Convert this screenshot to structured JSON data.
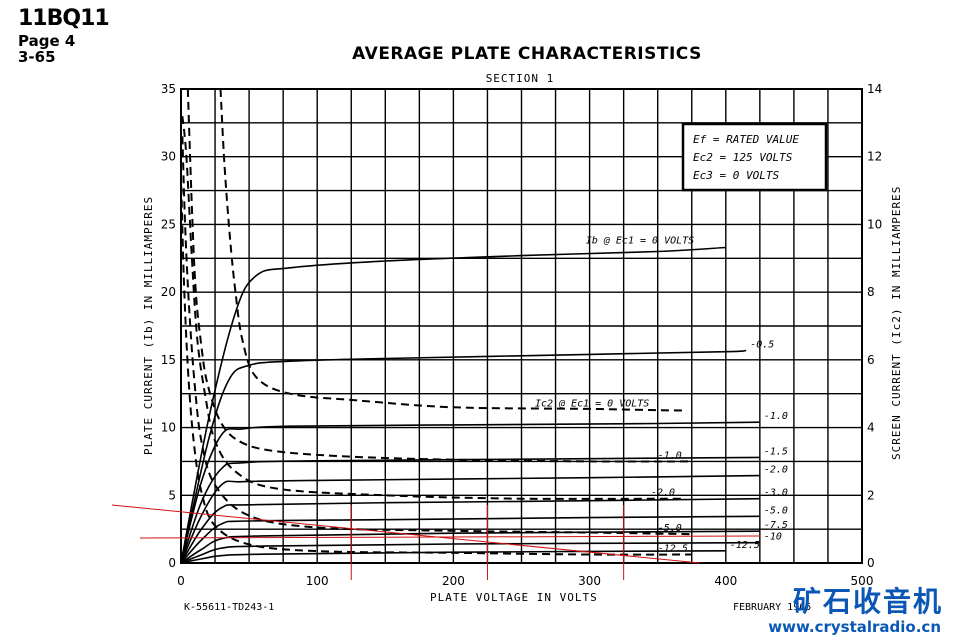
{
  "header": {
    "tube": "11BQ11",
    "page": "Page 4",
    "date": "3-65"
  },
  "footer": {
    "drawing_no": "K-55611-TD243-1",
    "date_text": "FEBRUARY 1965"
  },
  "watermark": {
    "chinese": "矿石收音机",
    "url": "www.crystalradio.cn",
    "color": "#0b57b5"
  },
  "conditions": [
    "Ef = RATED VALUE",
    "Ec2 = 125 VOLTS",
    "Ec3 = 0 VOLTS"
  ],
  "chart_data": {
    "type": "line",
    "title": "AVERAGE PLATE CHARACTERISTICS",
    "subtitle": "SECTION 1",
    "xlabel": "PLATE VOLTAGE IN VOLTS",
    "ylabel": "PLATE CURRENT (Ib) IN MILLIAMPERES",
    "y2label": "SCREEN CURRENT (Ic2) IN MILLIAMPERES",
    "xlim": [
      0,
      500
    ],
    "ylim": [
      0,
      35
    ],
    "y2lim": [
      0,
      14
    ],
    "xticks": [
      0,
      100,
      200,
      300,
      400,
      500
    ],
    "yticks": [
      0,
      5,
      10,
      15,
      20,
      25,
      30,
      35
    ],
    "y2ticks": [
      0,
      2,
      4,
      6,
      8,
      10,
      12,
      14
    ],
    "grid": true,
    "plate_series": [
      {
        "name": "Ib @ Ec1 = 0 VOLTS",
        "x": [
          0,
          20,
          40,
          55,
          80,
          150,
          250,
          350,
          400
        ],
        "y": [
          0,
          10.5,
          18.5,
          21.2,
          21.8,
          22.3,
          22.7,
          23.0,
          23.3
        ]
      },
      {
        "name": "-0.5",
        "x": [
          0,
          20,
          35,
          50,
          80,
          150,
          300,
          400,
          415
        ],
        "y": [
          0,
          9,
          13.5,
          14.6,
          14.9,
          15.1,
          15.4,
          15.6,
          15.7
        ]
      },
      {
        "name": "-1.0",
        "x": [
          0,
          15,
          30,
          45,
          80,
          200,
          350,
          425
        ],
        "y": [
          0,
          6,
          9.5,
          9.9,
          10.1,
          10.2,
          10.3,
          10.4
        ]
      },
      {
        "name": "-1.5",
        "x": [
          0,
          15,
          30,
          45,
          100,
          300,
          425
        ],
        "y": [
          0,
          4.5,
          7,
          7.4,
          7.55,
          7.7,
          7.8
        ]
      },
      {
        "name": "-2.0",
        "x": [
          0,
          15,
          30,
          45,
          100,
          300,
          425
        ],
        "y": [
          0,
          3.5,
          5.8,
          6.0,
          6.1,
          6.3,
          6.45
        ]
      },
      {
        "name": "-3.0",
        "x": [
          0,
          15,
          30,
          50,
          150,
          300,
          425
        ],
        "y": [
          0,
          2.5,
          4.1,
          4.3,
          4.45,
          4.6,
          4.75
        ]
      },
      {
        "name": "-5.0",
        "x": [
          0,
          15,
          30,
          50,
          150,
          300,
          425
        ],
        "y": [
          0,
          1.7,
          2.9,
          3.1,
          3.2,
          3.35,
          3.45
        ]
      },
      {
        "name": "-7.5",
        "x": [
          0,
          15,
          30,
          60,
          200,
          425
        ],
        "y": [
          0,
          1.0,
          1.8,
          2.0,
          2.2,
          2.35
        ]
      },
      {
        "name": "-10",
        "x": [
          0,
          15,
          30,
          60,
          200,
          425
        ],
        "y": [
          0,
          0.6,
          1.1,
          1.25,
          1.4,
          1.5
        ]
      },
      {
        "name": "-12.5",
        "x": [
          0,
          15,
          30,
          60,
          200,
          400
        ],
        "y": [
          0,
          0.3,
          0.55,
          0.65,
          0.8,
          0.9
        ]
      }
    ],
    "screen_series": [
      {
        "name": "Ic2 @ Ec1 = 0 VOLTS",
        "x": [
          29,
          32,
          36,
          40,
          45,
          55,
          80,
          130,
          200,
          300,
          370
        ],
        "y": [
          14,
          11.7,
          9.6,
          8.0,
          6.6,
          5.5,
          5.0,
          4.8,
          4.6,
          4.55,
          4.5
        ]
      },
      {
        "name": "-1.0",
        "x": [
          5,
          10,
          15,
          20,
          30,
          45,
          70,
          120,
          200,
          300,
          375
        ],
        "y": [
          14,
          8.6,
          6.4,
          5.2,
          4.1,
          3.55,
          3.3,
          3.15,
          3.05,
          3.0,
          3.0
        ]
      },
      {
        "name": "-2.0",
        "x": [
          1,
          4,
          8,
          12,
          18,
          25,
          40,
          70,
          150,
          250,
          370
        ],
        "y": [
          13.2,
          12,
          9,
          6.6,
          4.9,
          3.6,
          2.7,
          2.2,
          2.0,
          1.9,
          1.9
        ]
      },
      {
        "name": "-5.0",
        "x": [
          1,
          3,
          6,
          10,
          15,
          25,
          50,
          100,
          200,
          300,
          375
        ],
        "y": [
          12.6,
          10,
          7.5,
          5.3,
          3.6,
          2.3,
          1.4,
          1.05,
          0.95,
          0.9,
          0.85
        ]
      },
      {
        "name": "-12.5",
        "x": [
          0,
          2,
          5,
          9,
          15,
          25,
          50,
          100,
          200,
          300,
          375
        ],
        "y": [
          11.5,
          8.5,
          5.8,
          3.7,
          2.1,
          1.1,
          0.55,
          0.35,
          0.3,
          0.25,
          0.25
        ]
      }
    ],
    "annotation_lines_color": "#d01010"
  }
}
